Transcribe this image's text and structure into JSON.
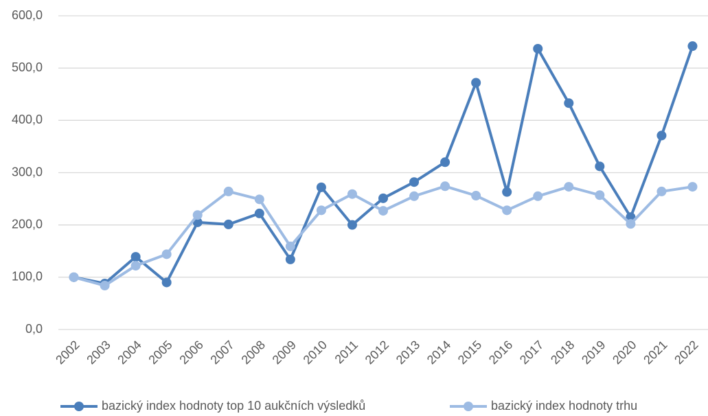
{
  "chart_data": {
    "type": "line",
    "categories": [
      "2002",
      "2003",
      "2004",
      "2005",
      "2006",
      "2007",
      "2008",
      "2009",
      "2010",
      "2011",
      "2012",
      "2013",
      "2014",
      "2015",
      "2016",
      "2017",
      "2018",
      "2019",
      "2020",
      "2021",
      "2022"
    ],
    "series": [
      {
        "name": "bazický index hodnoty top 10 aukčních výsledků",
        "color": "#4a7ebb",
        "values": [
          100,
          88,
          139,
          90,
          205,
          201,
          222,
          134,
          272,
          200,
          251,
          282,
          320,
          472,
          263,
          537,
          433,
          312,
          215,
          371,
          542
        ]
      },
      {
        "name": "bazický index hodnoty trhu",
        "color": "#9dbbe3",
        "values": [
          100,
          84,
          122,
          144,
          219,
          264,
          249,
          159,
          228,
          259,
          227,
          255,
          274,
          256,
          228,
          255,
          273,
          257,
          202,
          264,
          273
        ]
      }
    ],
    "ylim": [
      0,
      600
    ],
    "yticks": [
      {
        "value": 0,
        "label": "0,0"
      },
      {
        "value": 100,
        "label": "100,0"
      },
      {
        "value": 200,
        "label": "200,0"
      },
      {
        "value": 300,
        "label": "300,0"
      },
      {
        "value": 400,
        "label": "400,0"
      },
      {
        "value": 500,
        "label": "500,0"
      },
      {
        "value": 600,
        "label": "600,0"
      }
    ],
    "grid": true,
    "legend": "bottom"
  }
}
